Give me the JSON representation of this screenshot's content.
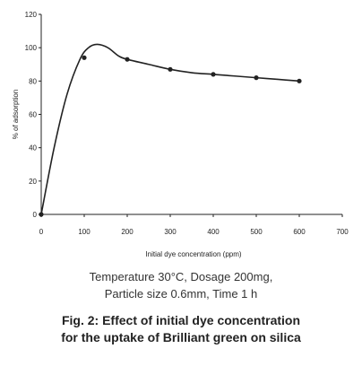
{
  "chart_data": {
    "type": "line",
    "title": "",
    "xlabel": "Initial dye concentration (ppm)",
    "ylabel": "% of adsorption",
    "xlim": [
      0,
      700
    ],
    "ylim": [
      0,
      120
    ],
    "x_ticks": [
      0,
      100,
      200,
      300,
      400,
      500,
      600,
      700
    ],
    "y_ticks": [
      0,
      20,
      40,
      60,
      80,
      100,
      120
    ],
    "grid": false,
    "legend": "none",
    "series": [
      {
        "markers": [
          {
            "x": 0,
            "y": 0
          },
          {
            "x": 100,
            "y": 94
          },
          {
            "x": 200,
            "y": 93
          },
          {
            "x": 300,
            "y": 87
          },
          {
            "x": 400,
            "y": 84
          },
          {
            "x": 500,
            "y": 82
          },
          {
            "x": 600,
            "y": 80
          }
        ],
        "curve": [
          {
            "x": 0,
            "y": 0
          },
          {
            "x": 30,
            "y": 40
          },
          {
            "x": 60,
            "y": 72
          },
          {
            "x": 90,
            "y": 93
          },
          {
            "x": 110,
            "y": 100
          },
          {
            "x": 130,
            "y": 102
          },
          {
            "x": 155,
            "y": 100
          },
          {
            "x": 180,
            "y": 95
          },
          {
            "x": 200,
            "y": 93
          },
          {
            "x": 250,
            "y": 90
          },
          {
            "x": 300,
            "y": 87
          },
          {
            "x": 350,
            "y": 85
          },
          {
            "x": 400,
            "y": 84
          },
          {
            "x": 450,
            "y": 83
          },
          {
            "x": 500,
            "y": 82
          },
          {
            "x": 550,
            "y": 81
          },
          {
            "x": 600,
            "y": 80
          }
        ],
        "color": "#222222"
      }
    ]
  },
  "conditions": {
    "line1": "Temperature 30°C, Dosage 200mg,",
    "line2": "Particle size 0.6mm, Time 1 h"
  },
  "figure_caption": {
    "line1": "Fig. 2: Effect of initial dye concentration",
    "line2": "for the uptake of Brilliant green on silica"
  }
}
